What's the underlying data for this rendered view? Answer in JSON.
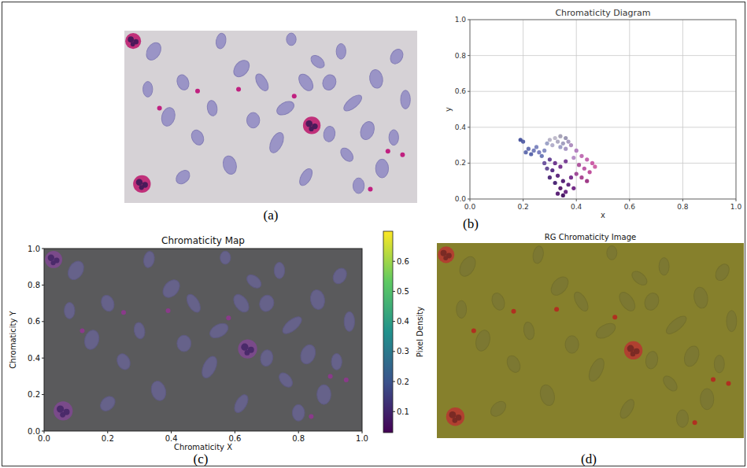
{
  "chart_data": [
    {
      "type": "image",
      "panel_label": "(a)",
      "tick_labels": false
    },
    {
      "type": "scatter",
      "panel_label": "(b)",
      "title": "Chromaticity Diagram",
      "x_label": "x",
      "y_label": "y",
      "xlim": [
        0,
        1
      ],
      "ylim": [
        0,
        1
      ],
      "xticks": [
        {
          "value": 0,
          "label": "0.0"
        },
        {
          "value": 0.2,
          "label": "0.2"
        },
        {
          "value": 0.4,
          "label": "0.4"
        },
        {
          "value": 0.6,
          "label": "0.6"
        },
        {
          "value": 0.8,
          "label": "0.8"
        },
        {
          "value": 1,
          "label": "1.0"
        }
      ],
      "yticks": [
        {
          "value": 0,
          "label": "0.0"
        },
        {
          "value": 0.2,
          "label": "0.2"
        },
        {
          "value": 0.4,
          "label": "0.4"
        },
        {
          "value": 0.6,
          "label": "0.6"
        },
        {
          "value": 0.8,
          "label": "0.8"
        },
        {
          "value": 1,
          "label": "1.0"
        }
      ],
      "grid": true,
      "x": [
        0.3,
        0.32,
        0.34,
        0.36,
        0.33,
        0.35,
        0.31,
        0.29,
        0.37,
        0.38,
        0.34,
        0.36,
        0.2,
        0.22,
        0.24,
        0.26,
        0.25,
        0.23,
        0.27,
        0.28,
        0.21,
        0.19,
        0.3,
        0.32,
        0.34,
        0.36,
        0.31,
        0.33,
        0.35,
        0.37,
        0.34,
        0.36,
        0.38,
        0.32,
        0.3,
        0.39,
        0.35,
        0.33,
        0.29,
        0.28,
        0.4,
        0.42,
        0.44,
        0.46,
        0.41,
        0.43,
        0.45,
        0.4,
        0.42,
        0.47,
        0.39,
        0.44
      ],
      "values": [
        0.33,
        0.34,
        0.35,
        0.34,
        0.32,
        0.31,
        0.3,
        0.31,
        0.32,
        0.3,
        0.29,
        0.28,
        0.32,
        0.28,
        0.27,
        0.26,
        0.29,
        0.25,
        0.24,
        0.27,
        0.26,
        0.33,
        0.22,
        0.2,
        0.18,
        0.21,
        0.16,
        0.13,
        0.1,
        0.08,
        0.06,
        0.04,
        0.12,
        0.09,
        0.12,
        0.06,
        0.02,
        0.03,
        0.17,
        0.2,
        0.27,
        0.24,
        0.22,
        0.2,
        0.19,
        0.17,
        0.15,
        0.14,
        0.12,
        0.18,
        0.23,
        0.1
      ],
      "colors": [
        "#b8b4c8",
        "#c0bccc",
        "#a8a4b8",
        "#9c98b4",
        "#b0acc4",
        "#a4a0c0",
        "#b4b0cc",
        "#9ea4c8",
        "#a89cc0",
        "#b090c0",
        "#a0a0c8",
        "#a898c4",
        "#5a64a8",
        "#6a74b4",
        "#7880bc",
        "#7c80c0",
        "#8088c0",
        "#5c68ac",
        "#707cb8",
        "#8890c4",
        "#6470b0",
        "#4c58a0",
        "#6a4898",
        "#703c90",
        "#783890",
        "#7c4498",
        "#5c3488",
        "#602c80",
        "#582478",
        "#642a80",
        "#5a2070",
        "#6c2c84",
        "#7a3490",
        "#4e2a78",
        "#54307e",
        "#742c88",
        "#4c1c68",
        "#5c2478",
        "#6a5098",
        "#7058a0",
        "#b480c0",
        "#c070b4",
        "#c468b0",
        "#cc60a8",
        "#b058a0",
        "#bc5ca8",
        "#c0509c",
        "#a04c98",
        "#ac4894",
        "#d068a8",
        "#b890c8",
        "#a03c88"
      ]
    },
    {
      "type": "image",
      "panel_label": "(c)",
      "title": "Chromaticity Map",
      "x_label": "Chromaticity X",
      "y_label": "Chromaticity Y",
      "xlim": [
        0,
        1
      ],
      "ylim": [
        0,
        1
      ],
      "xticks": [
        {
          "value": 0,
          "label": "0.0"
        },
        {
          "value": 0.2,
          "label": "0.2"
        },
        {
          "value": 0.4,
          "label": "0.4"
        },
        {
          "value": 0.6,
          "label": "0.6"
        },
        {
          "value": 0.8,
          "label": "0.8"
        },
        {
          "value": 1,
          "label": "1.0"
        }
      ],
      "yticks": [
        {
          "value": 0,
          "label": "0.0"
        },
        {
          "value": 0.2,
          "label": "0.2"
        },
        {
          "value": 0.4,
          "label": "0.4"
        },
        {
          "value": 0.6,
          "label": "0.6"
        },
        {
          "value": 0.8,
          "label": "0.8"
        },
        {
          "value": 1,
          "label": "1.0"
        }
      ],
      "colorbar": {
        "label": "Pixel Density",
        "range": [
          0.03,
          0.7
        ],
        "ticks": [
          0.1,
          0.2,
          0.3,
          0.4,
          0.5,
          0.6
        ]
      }
    },
    {
      "type": "image",
      "panel_label": "(d)",
      "title": "RG Chromaticity Image",
      "tick_labels": false
    }
  ]
}
